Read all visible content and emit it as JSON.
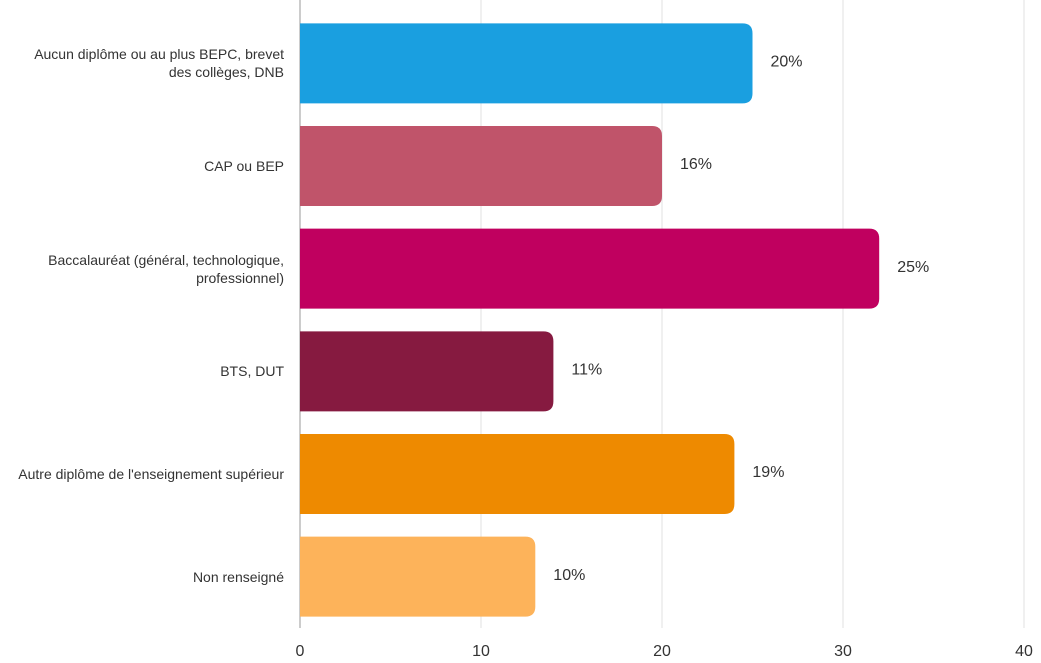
{
  "chart_data": {
    "type": "barh",
    "categories": [
      "Aucun diplôme ou au plus BEPC, brevet des collèges, DNB",
      "CAP ou BEP",
      "Baccalauréat (général, technologique, professionnel)",
      "BTS, DUT",
      "Autre diplôme de l'enseignement supérieur",
      "Non renseigné"
    ],
    "values": [
      25,
      20,
      32,
      14,
      24,
      13
    ],
    "share_labels": [
      "20%",
      "16%",
      "25%",
      "11%",
      "19%",
      "10%"
    ],
    "colors": [
      "#1a9fe0",
      "#c0546a",
      "#c0005f",
      "#861a40",
      "#ee8a00",
      "#fdb35a"
    ],
    "xlim": [
      0,
      40
    ],
    "xticks": [
      0,
      10,
      20,
      30,
      40
    ],
    "grid": true
  }
}
